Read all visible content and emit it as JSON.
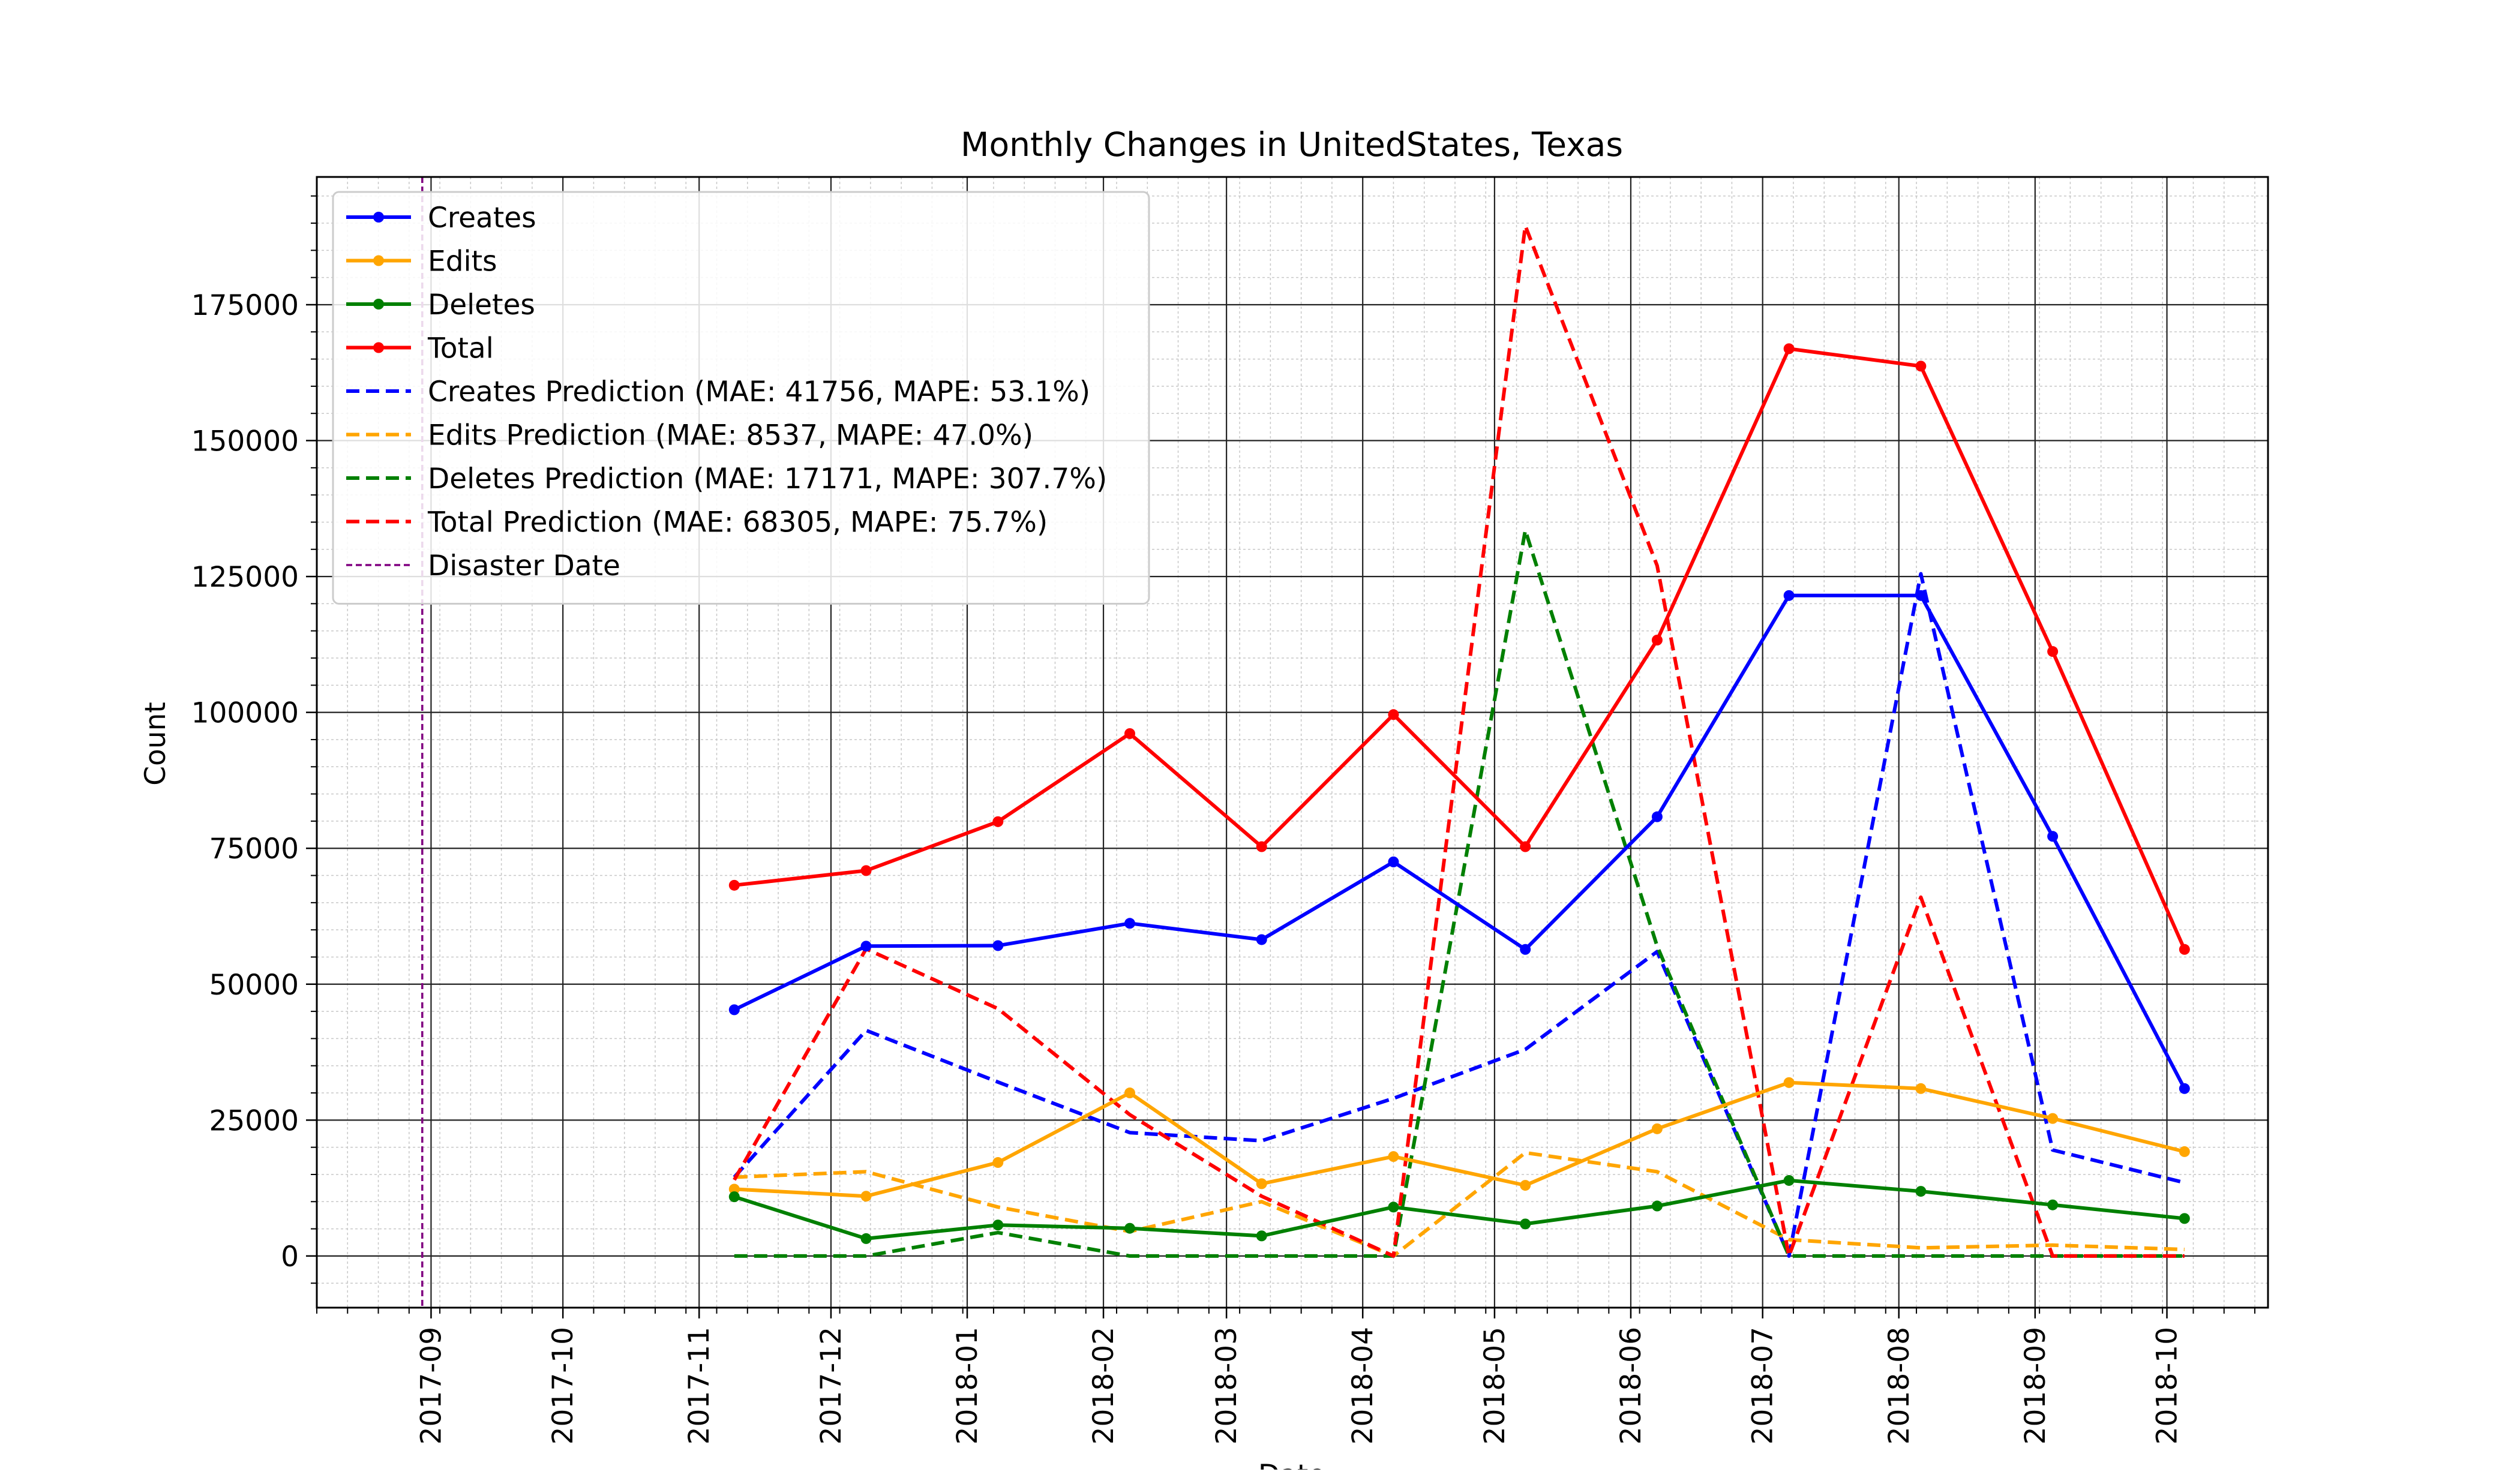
{
  "chart_data": {
    "type": "line",
    "title": "Monthly Changes in UnitedStates, Texas",
    "xlabel": "Date",
    "ylabel": "Count",
    "x_range": [
      "2017-08-06",
      "2018-10-24"
    ],
    "ylim": [
      -9500,
      198500
    ],
    "y_ticks": [
      0,
      25000,
      50000,
      75000,
      100000,
      125000,
      150000,
      175000
    ],
    "x_ticks": [
      "2017-09",
      "2017-10",
      "2017-11",
      "2017-12",
      "2018-01",
      "2018-02",
      "2018-03",
      "2018-04",
      "2018-05",
      "2018-06",
      "2018-07",
      "2018-08",
      "2018-09",
      "2018-10"
    ],
    "grid": true,
    "legend_position": "upper-left",
    "x": [
      "2017-11-09",
      "2017-12-09",
      "2018-01-08",
      "2018-02-07",
      "2018-03-09",
      "2018-04-08",
      "2018-05-08",
      "2018-06-07",
      "2018-07-07",
      "2018-08-06",
      "2018-09-05",
      "2018-10-05"
    ],
    "series": [
      {
        "name": "Creates",
        "color": "#0000ff",
        "style": "solid",
        "marker": true,
        "values": [
          45300,
          57000,
          57100,
          61200,
          58200,
          72500,
          56400,
          80800,
          121500,
          121500,
          77200,
          30800
        ]
      },
      {
        "name": "Edits",
        "color": "#ffa500",
        "style": "solid",
        "marker": true,
        "values": [
          12300,
          11000,
          17200,
          30000,
          13300,
          18300,
          13000,
          23400,
          31900,
          30800,
          25300,
          19200
        ]
      },
      {
        "name": "Deletes",
        "color": "#008000",
        "style": "solid",
        "marker": true,
        "values": [
          10900,
          3200,
          5700,
          5100,
          3700,
          9000,
          5900,
          9200,
          13900,
          11900,
          9400,
          6900
        ]
      },
      {
        "name": "Total",
        "color": "#ff0000",
        "style": "solid",
        "marker": true,
        "values": [
          68200,
          70900,
          79900,
          96100,
          75300,
          99600,
          75300,
          113300,
          166900,
          163700,
          111200,
          56400
        ]
      },
      {
        "name": "Creates Prediction (MAE: 41756, MAPE: 53.1%)",
        "color": "#0000ff",
        "style": "dashed",
        "marker": false,
        "values": [
          14500,
          41500,
          32000,
          22700,
          21200,
          29000,
          38000,
          56000,
          0,
          125500,
          19500,
          13500
        ]
      },
      {
        "name": "Edits Prediction (MAE: 8537, MAPE: 47.0%)",
        "color": "#ffa500",
        "style": "dashed",
        "marker": false,
        "values": [
          14500,
          15500,
          9000,
          4500,
          10000,
          0,
          19000,
          15500,
          3000,
          1500,
          2000,
          1200
        ]
      },
      {
        "name": "Deletes Prediction (MAE: 17171, MAPE: 307.7%)",
        "color": "#008000",
        "style": "dashed",
        "marker": false,
        "values": [
          0,
          0,
          4300,
          0,
          0,
          0,
          133500,
          57000,
          0,
          0,
          0,
          0
        ]
      },
      {
        "name": "Total Prediction (MAE: 68305, MAPE: 75.7%)",
        "color": "#ff0000",
        "style": "dashed",
        "marker": false,
        "values": [
          14000,
          56500,
          45500,
          26000,
          11000,
          0,
          189500,
          127000,
          0,
          66000,
          0,
          0
        ]
      }
    ],
    "annotations": [
      {
        "name": "Disaster Date",
        "type": "vline",
        "x": "2017-08-30",
        "color": "#800080",
        "style": "dashed"
      }
    ]
  }
}
